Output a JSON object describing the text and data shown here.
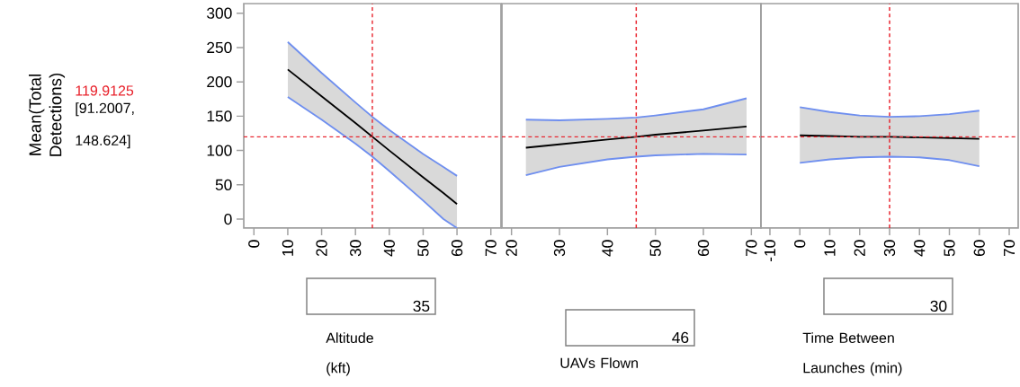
{
  "chart_data": [
    {
      "type": "line",
      "ylabel": "Mean(Total Detections)",
      "xlabel": "Altitude (kft)",
      "annotations": [
        "119.9125",
        "[91.2007, 148.624]",
        "35"
      ],
      "x": [
        10,
        20,
        30,
        35,
        40,
        50,
        56,
        60
      ],
      "series": [
        {
          "color": "#000000",
          "values": [
            218,
            179,
            140,
            120,
            100,
            61,
            38,
            22
          ],
          "upper": [
            258,
            213,
            170,
            149,
            130,
            95,
            76,
            63
          ],
          "lower": [
            178,
            145,
            110,
            91,
            70,
            27,
            0,
            -13
          ]
        },
        {
          "color": "#6f8fef",
          "values": [
            258,
            213,
            170,
            149,
            130,
            95,
            76,
            63
          ]
        },
        {
          "color": "#6f8fef",
          "values": [
            178,
            145,
            110,
            91,
            70,
            27,
            0,
            -13
          ]
        }
      ],
      "xlim": [
        -3,
        73
      ],
      "xticks": [
        0,
        10,
        20,
        30,
        40,
        50,
        60,
        70
      ],
      "ylim": [
        -13,
        314
      ],
      "yticks": [
        0,
        50,
        100,
        150,
        200,
        250,
        300
      ],
      "ref_lines": [
        {
          "axis": "x",
          "value": 35,
          "color": "#e8202a",
          "line_style": "dashed"
        },
        {
          "axis": "y",
          "value": 119.9125,
          "color": "#e8202a",
          "line_style": "dashed"
        }
      ]
    },
    {
      "type": "line",
      "xlabel": "UAVs Flown",
      "annotations": [
        "46"
      ],
      "x": [
        23,
        30,
        40,
        46,
        50,
        60,
        69
      ],
      "series": [
        {
          "color": "#000000",
          "values": [
            104,
            109,
            116,
            120,
            123,
            129,
            135
          ],
          "upper": [
            145,
            144,
            146,
            148,
            151,
            160,
            176
          ],
          "lower": [
            64,
            76,
            87,
            91,
            93,
            95,
            94
          ]
        },
        {
          "color": "#6f8fef",
          "values": [
            145,
            144,
            146,
            148,
            151,
            160,
            176
          ]
        },
        {
          "color": "#6f8fef",
          "values": [
            64,
            76,
            87,
            91,
            93,
            95,
            94
          ]
        }
      ],
      "xlim": [
        18,
        72
      ],
      "xticks": [
        20,
        30,
        40,
        50,
        60,
        70
      ],
      "ylim": [
        -13,
        314
      ],
      "tick_labels": "x",
      "ref_lines": [
        {
          "axis": "x",
          "value": 46,
          "color": "#e8202a",
          "line_style": "dashed"
        },
        {
          "axis": "y",
          "value": 119.9125,
          "color": "#e8202a",
          "line_style": "dashed"
        }
      ]
    },
    {
      "type": "line",
      "xlabel": "Time Between Launches (min)",
      "annotations": [
        "30"
      ],
      "x": [
        0,
        10,
        20,
        30,
        40,
        50,
        60
      ],
      "series": [
        {
          "color": "#000000",
          "values": [
            122,
            121,
            120,
            120,
            119,
            118,
            117
          ],
          "upper": [
            163,
            156,
            151,
            149,
            150,
            153,
            158
          ],
          "lower": [
            82,
            87,
            90,
            91,
            90,
            86,
            77
          ]
        },
        {
          "color": "#6f8fef",
          "values": [
            163,
            156,
            151,
            149,
            150,
            153,
            158
          ]
        },
        {
          "color": "#6f8fef",
          "values": [
            82,
            87,
            90,
            91,
            90,
            86,
            77
          ]
        }
      ],
      "xlim": [
        -13,
        73
      ],
      "xticks": [
        -10,
        0,
        10,
        20,
        30,
        40,
        50,
        60,
        70
      ],
      "ylim": [
        -13,
        314
      ],
      "tick_labels": "x",
      "ref_lines": [
        {
          "axis": "x",
          "value": 30,
          "color": "#e8202a",
          "line_style": "dashed"
        },
        {
          "axis": "y",
          "value": 119.9125,
          "color": "#e8202a",
          "line_style": "dashed"
        }
      ]
    }
  ]
}
